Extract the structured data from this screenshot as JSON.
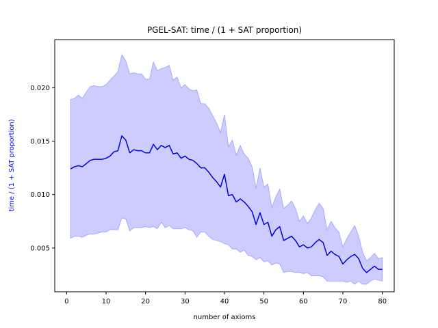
{
  "chart_data": {
    "type": "line",
    "title": "PGEL-SAT: time / (1 + SAT proportion)",
    "xlabel": "number of axioms",
    "ylabel": "time / (1 + SAT proportion)",
    "xlim": [
      -3,
      83
    ],
    "ylim": [
      0.0009,
      0.0245
    ],
    "xticks": [
      0,
      10,
      20,
      30,
      40,
      50,
      60,
      70,
      80
    ],
    "yticks": [
      0.005,
      0.01,
      0.015,
      0.02
    ],
    "ytick_labels": [
      "0.005",
      "0.010",
      "0.015",
      "0.020"
    ],
    "grid": false,
    "line_color": "#0000dd",
    "band_color": "#0000ff",
    "series": [
      {
        "x": [
          1,
          2,
          3,
          4,
          5,
          6,
          7,
          8,
          9,
          10,
          11,
          12,
          13,
          14,
          15,
          16,
          17,
          18,
          19,
          20,
          21,
          22,
          23,
          24,
          25,
          26,
          27,
          28,
          29,
          30,
          31,
          32,
          33,
          34,
          35,
          36,
          37,
          38,
          39,
          40,
          41,
          42,
          43,
          44,
          45,
          46,
          47,
          48,
          49,
          50,
          51,
          52,
          53,
          54,
          55,
          56,
          57,
          58,
          59,
          60,
          61,
          62,
          63,
          64,
          65,
          66,
          67,
          68,
          69,
          70,
          71,
          72,
          73,
          74,
          75,
          76,
          77,
          78,
          79,
          80
        ],
        "values": [
          0.0124,
          0.0126,
          0.0127,
          0.0126,
          0.0129,
          0.0132,
          0.0133,
          0.0133,
          0.0133,
          0.0134,
          0.0136,
          0.014,
          0.0141,
          0.0155,
          0.0151,
          0.0139,
          0.0142,
          0.0141,
          0.0141,
          0.0139,
          0.0139,
          0.0147,
          0.0142,
          0.0146,
          0.0144,
          0.0146,
          0.0138,
          0.0139,
          0.0134,
          0.0136,
          0.0133,
          0.0132,
          0.0129,
          0.0125,
          0.0125,
          0.0121,
          0.0116,
          0.0112,
          0.0107,
          0.0119,
          0.0099,
          0.01,
          0.0093,
          0.0096,
          0.0093,
          0.0089,
          0.0084,
          0.0072,
          0.0083,
          0.0072,
          0.0074,
          0.0061,
          0.0067,
          0.007,
          0.0057,
          0.0059,
          0.0061,
          0.0057,
          0.0051,
          0.0053,
          0.005,
          0.0051,
          0.0055,
          0.0058,
          0.0055,
          0.0043,
          0.0047,
          0.0044,
          0.0042,
          0.0035,
          0.0039,
          0.0042,
          0.0044,
          0.004,
          0.0031,
          0.0027,
          0.003,
          0.0033,
          0.003,
          0.003
        ],
        "lower": [
          0.0059,
          0.0061,
          0.0061,
          0.006,
          0.0062,
          0.0063,
          0.0063,
          0.0064,
          0.0065,
          0.0065,
          0.0067,
          0.0067,
          0.0067,
          0.0078,
          0.0077,
          0.0066,
          0.0069,
          0.0069,
          0.0069,
          0.007,
          0.0069,
          0.007,
          0.0068,
          0.0074,
          0.0069,
          0.0071,
          0.0068,
          0.0068,
          0.0068,
          0.0069,
          0.0067,
          0.0066,
          0.006,
          0.0065,
          0.0065,
          0.0061,
          0.0058,
          0.0057,
          0.0056,
          0.0054,
          0.0053,
          0.0049,
          0.0049,
          0.0046,
          0.0048,
          0.0043,
          0.0042,
          0.0039,
          0.0041,
          0.0037,
          0.0038,
          0.0034,
          0.0036,
          0.0035,
          0.0027,
          0.0028,
          0.0028,
          0.0027,
          0.0027,
          0.0026,
          0.0027,
          0.0024,
          0.0024,
          0.0024,
          0.0023,
          0.0019,
          0.0019,
          0.0019,
          0.0019,
          0.0019,
          0.0018,
          0.0019,
          0.0016,
          0.0019,
          0.0016,
          0.0016,
          0.0019,
          0.0021,
          0.002,
          0.0019
        ],
        "upper": [
          0.0189,
          0.019,
          0.0193,
          0.019,
          0.0196,
          0.0201,
          0.0202,
          0.0201,
          0.0201,
          0.0203,
          0.0207,
          0.0211,
          0.0215,
          0.0231,
          0.0225,
          0.0213,
          0.0214,
          0.0213,
          0.0213,
          0.0208,
          0.0208,
          0.0224,
          0.0216,
          0.0218,
          0.0219,
          0.0221,
          0.0207,
          0.021,
          0.02,
          0.0203,
          0.0199,
          0.0197,
          0.0198,
          0.0185,
          0.0185,
          0.0181,
          0.0174,
          0.0167,
          0.0158,
          0.0175,
          0.0145,
          0.0151,
          0.0137,
          0.0146,
          0.0138,
          0.0134,
          0.0126,
          0.0106,
          0.0125,
          0.0107,
          0.011,
          0.0088,
          0.0098,
          0.0105,
          0.0087,
          0.009,
          0.0094,
          0.0087,
          0.0075,
          0.008,
          0.0073,
          0.0078,
          0.0086,
          0.0092,
          0.0087,
          0.0067,
          0.0075,
          0.0069,
          0.0065,
          0.0051,
          0.0059,
          0.0065,
          0.0071,
          0.0061,
          0.0046,
          0.0038,
          0.0041,
          0.0045,
          0.004,
          0.0041
        ]
      }
    ]
  }
}
